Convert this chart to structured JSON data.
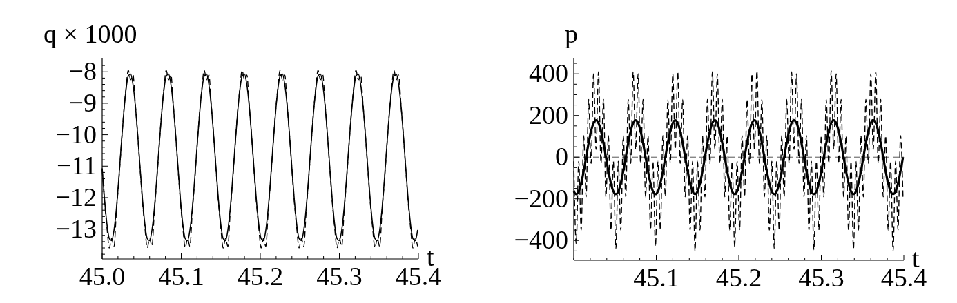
{
  "chart_data": [
    {
      "type": "line",
      "ylabel": "q × 1000",
      "xlabel": "t",
      "x": [
        45,
        45.003,
        45.006,
        45.009,
        45.012,
        45.015,
        45.018,
        45.021,
        45.024,
        45.027,
        45.03,
        45.033,
        45.036,
        45.039,
        45.042,
        45.045,
        45.048,
        45.051,
        45.054,
        45.057,
        45.06,
        45.063,
        45.066,
        45.069,
        45.072,
        45.075,
        45.078,
        45.081,
        45.084,
        45.087,
        45.09,
        45.093,
        45.096,
        45.099,
        45.102,
        45.105,
        45.108,
        45.111,
        45.114,
        45.117,
        45.12,
        45.123,
        45.126,
        45.129,
        45.132,
        45.135,
        45.138,
        45.141,
        45.144,
        45.147,
        45.15,
        45.153,
        45.156,
        45.159,
        45.162,
        45.165,
        45.168,
        45.171,
        45.174,
        45.177,
        45.18,
        45.183,
        45.186,
        45.189,
        45.192,
        45.195,
        45.198,
        45.201,
        45.204,
        45.207,
        45.21,
        45.213,
        45.216,
        45.219,
        45.222,
        45.225,
        45.228,
        45.231,
        45.234,
        45.237,
        45.24,
        45.243,
        45.246,
        45.249,
        45.252,
        45.255,
        45.258,
        45.261,
        45.264,
        45.267,
        45.27,
        45.273,
        45.276,
        45.279,
        45.282,
        45.285,
        45.288,
        45.291,
        45.294,
        45.297,
        45.3,
        45.303,
        45.306,
        45.309,
        45.312,
        45.315,
        45.318,
        45.321,
        45.324,
        45.327,
        45.33,
        45.333,
        45.336,
        45.339,
        45.342,
        45.345,
        45.348,
        45.351,
        45.354,
        45.357,
        45.36,
        45.363,
        45.366,
        45.369,
        45.372,
        45.375,
        45.378,
        45.381,
        45.384,
        45.387,
        45.39,
        45.393,
        45.396,
        45.399
      ],
      "series": [
        {
          "color": "#000000",
          "line_style": "solid",
          "values": [
            -11.07,
            -12.06,
            -12.84,
            -13.3,
            -13.37,
            -13.03,
            -12.35,
            -11.41,
            -10.37,
            -9.39,
            -8.6,
            -8.14,
            -8.07,
            -8.41,
            -9.09,
            -10.03,
            -11.07,
            -12.06,
            -12.84,
            -13.3,
            -13.37,
            -13.03,
            -12.35,
            -11.41,
            -10.37,
            -9.39,
            -8.6,
            -8.14,
            -8.07,
            -8.41,
            -9.09,
            -10.03,
            -11.07,
            -12.06,
            -12.84,
            -13.3,
            -13.37,
            -13.03,
            -12.35,
            -11.41,
            -10.37,
            -9.39,
            -8.6,
            -8.14,
            -8.07,
            -8.41,
            -9.09,
            -10.03,
            -11.07,
            -12.06,
            -12.84,
            -13.3,
            -13.37,
            -13.03,
            -12.35,
            -11.41,
            -10.37,
            -9.39,
            -8.6,
            -8.14,
            -8.07,
            -8.41,
            -9.09,
            -10.03,
            -11.07,
            -12.06,
            -12.84,
            -13.3,
            -13.37,
            -13.03,
            -12.35,
            -11.41,
            -10.37,
            -9.39,
            -8.6,
            -8.14,
            -8.07,
            -8.41,
            -9.09,
            -10.03,
            -11.07,
            -12.06,
            -12.84,
            -13.3,
            -13.37,
            -13.03,
            -12.35,
            -11.41,
            -10.37,
            -9.39,
            -8.6,
            -8.14,
            -8.07,
            -8.41,
            -9.09,
            -10.03,
            -11.07,
            -12.06,
            -12.84,
            -13.3,
            -13.37,
            -13.03,
            -12.35,
            -11.41,
            -10.37,
            -9.39,
            -8.6,
            -8.14,
            -8.07,
            -8.41,
            -9.09,
            -10.03,
            -11.07,
            -12.06,
            -12.84,
            -13.3,
            -13.37,
            -13.03,
            -12.35,
            -11.41,
            -10.37,
            -9.39,
            -8.6,
            -8.14,
            -8.07,
            -8.41,
            -9.09,
            -10.03,
            -11.07,
            -12.06,
            -12.84,
            -13.3,
            -13.37,
            -13.03
          ]
        },
        {
          "color": "#000000",
          "line_style": "dashed",
          "values": [
            -11.11,
            -12.14,
            -12.95,
            -13.6,
            -13.3,
            -13.55,
            -12.44,
            -11.47,
            -10.39,
            -9.36,
            -8.55,
            -7.95,
            -8.25,
            -8.1,
            -9.06,
            -10.03,
            -11.11,
            -12.14,
            -12.95,
            -13.6,
            -13.3,
            -13.55,
            -12.44,
            -11.47,
            -10.39,
            -9.36,
            -8.55,
            -7.95,
            -8.25,
            -8.1,
            -9.06,
            -10.03,
            -11.11,
            -12.14,
            -12.95,
            -13.6,
            -13.3,
            -13.55,
            -12.44,
            -11.47,
            -10.39,
            -9.36,
            -8.55,
            -7.95,
            -8.25,
            -8.1,
            -9.06,
            -10.03,
            -11.11,
            -12.14,
            -12.95,
            -13.6,
            -13.3,
            -13.55,
            -12.44,
            -11.47,
            -10.39,
            -9.36,
            -8.55,
            -7.95,
            -8.25,
            -8.1,
            -9.06,
            -10.03,
            -11.11,
            -12.14,
            -12.95,
            -13.6,
            -13.3,
            -13.55,
            -12.44,
            -11.47,
            -10.39,
            -9.36,
            -8.55,
            -7.95,
            -8.25,
            -8.1,
            -9.06,
            -10.03,
            -11.11,
            -12.14,
            -12.95,
            -13.6,
            -13.3,
            -13.55,
            -12.44,
            -11.47,
            -10.39,
            -9.36,
            -8.55,
            -7.95,
            -8.25,
            -8.1,
            -9.06,
            -10.03,
            -11.11,
            -12.14,
            -12.95,
            -13.6,
            -13.3,
            -13.55,
            -12.44,
            -11.47,
            -10.39,
            -9.36,
            -8.55,
            -7.95,
            -8.25,
            -8.1,
            -9.06,
            -10.03,
            -11.11,
            -12.14,
            -12.95,
            -13.6,
            -13.3,
            -13.55,
            -12.44,
            -11.47,
            -10.39,
            -9.36,
            -8.55,
            -7.95,
            -8.25,
            -8.1,
            -9.06,
            -10.03,
            -11.11,
            -12.14,
            -12.95,
            -13.6,
            -13.3,
            -13.55
          ]
        }
      ],
      "xlim": [
        45,
        45.4
      ],
      "ylim": [
        -13.95,
        -7.6
      ],
      "xticks": [
        {
          "value": 45,
          "label": "45.0"
        },
        {
          "value": 45.02,
          "label": null
        },
        {
          "value": 45.04,
          "label": null
        },
        {
          "value": 45.06,
          "label": null
        },
        {
          "value": 45.08,
          "label": null
        },
        45.1,
        {
          "value": 45.12,
          "label": null
        },
        {
          "value": 45.14,
          "label": null
        },
        {
          "value": 45.16,
          "label": null
        },
        {
          "value": 45.18,
          "label": null
        },
        45.2,
        {
          "value": 45.22,
          "label": null
        },
        {
          "value": 45.24,
          "label": null
        },
        {
          "value": 45.26,
          "label": null
        },
        {
          "value": 45.28,
          "label": null
        },
        45.3,
        {
          "value": 45.32,
          "label": null
        },
        {
          "value": 45.34,
          "label": null
        },
        {
          "value": 45.36,
          "label": null
        },
        {
          "value": 45.38,
          "label": null
        },
        45.4
      ],
      "yticks": [
        {
          "value": -7.8,
          "label": null
        },
        {
          "value": -8,
          "label": "−8"
        },
        {
          "value": -8.2,
          "label": null
        },
        {
          "value": -8.4,
          "label": null
        },
        {
          "value": -8.6,
          "label": null
        },
        {
          "value": -8.8,
          "label": null
        },
        {
          "value": -9,
          "label": "−9"
        },
        {
          "value": -9.2,
          "label": null
        },
        {
          "value": -9.4,
          "label": null
        },
        {
          "value": -9.6,
          "label": null
        },
        {
          "value": -9.8,
          "label": null
        },
        {
          "value": -10,
          "label": "−10"
        },
        {
          "value": -10.2,
          "label": null
        },
        {
          "value": -10.4,
          "label": null
        },
        {
          "value": -10.6,
          "label": null
        },
        {
          "value": -10.8,
          "label": null
        },
        {
          "value": -11,
          "label": "−11"
        },
        {
          "value": -11.2,
          "label": null
        },
        {
          "value": -11.4,
          "label": null
        },
        {
          "value": -11.6,
          "label": null
        },
        {
          "value": -11.8,
          "label": null
        },
        {
          "value": -12,
          "label": "−12"
        },
        {
          "value": -12.2,
          "label": null
        },
        {
          "value": -12.4,
          "label": null
        },
        {
          "value": -12.6,
          "label": null
        },
        {
          "value": -12.8,
          "label": null
        },
        {
          "value": -13,
          "label": "−13"
        },
        {
          "value": -13.2,
          "label": null
        },
        {
          "value": -13.4,
          "label": null
        },
        {
          "value": -13.6,
          "label": null
        },
        {
          "value": -13.8,
          "label": null
        }
      ]
    },
    {
      "type": "line",
      "ylabel": "p",
      "xlabel": "t",
      "x": [
        45,
        45.003,
        45.006,
        45.009,
        45.012,
        45.015,
        45.018,
        45.021,
        45.024,
        45.027,
        45.03,
        45.033,
        45.036,
        45.039,
        45.042,
        45.045,
        45.048,
        45.051,
        45.054,
        45.057,
        45.06,
        45.063,
        45.066,
        45.069,
        45.072,
        45.075,
        45.078,
        45.081,
        45.084,
        45.087,
        45.09,
        45.093,
        45.096,
        45.099,
        45.102,
        45.105,
        45.108,
        45.111,
        45.114,
        45.117,
        45.12,
        45.123,
        45.126,
        45.129,
        45.132,
        45.135,
        45.138,
        45.141,
        45.144,
        45.147,
        45.15,
        45.153,
        45.156,
        45.159,
        45.162,
        45.165,
        45.168,
        45.171,
        45.174,
        45.177,
        45.18,
        45.183,
        45.186,
        45.189,
        45.192,
        45.195,
        45.198,
        45.201,
        45.204,
        45.207,
        45.21,
        45.213,
        45.216,
        45.219,
        45.222,
        45.225,
        45.228,
        45.231,
        45.234,
        45.237,
        45.24,
        45.243,
        45.246,
        45.249,
        45.252,
        45.255,
        45.258,
        45.261,
        45.264,
        45.267,
        45.27,
        45.273,
        45.276,
        45.279,
        45.282,
        45.285,
        45.288,
        45.291,
        45.294,
        45.297,
        45.3,
        45.303,
        45.306,
        45.309,
        45.312,
        45.315,
        45.318,
        45.321,
        45.324,
        45.327,
        45.33,
        45.333,
        45.336,
        45.339,
        45.342,
        45.345,
        45.348,
        45.351,
        45.354,
        45.357,
        45.36,
        45.363,
        45.366,
        45.369,
        45.372,
        45.375,
        45.378,
        45.381,
        45.384,
        45.387,
        45.39,
        45.393,
        45.396,
        45.399
      ],
      "series": [
        {
          "color": "#000000",
          "line_style": "solid",
          "values": [
            -164,
            -177,
            -164,
            -125,
            -68,
            0,
            68,
            125,
            164,
            177,
            164,
            125,
            68,
            0,
            -68,
            -125,
            -164,
            -177,
            -164,
            -125,
            -68,
            0,
            68,
            125,
            164,
            177,
            164,
            125,
            68,
            0,
            -68,
            -125,
            -164,
            -177,
            -164,
            -125,
            -68,
            0,
            68,
            125,
            164,
            177,
            164,
            125,
            68,
            0,
            -68,
            -125,
            -164,
            -177,
            -164,
            -125,
            -68,
            0,
            68,
            125,
            164,
            177,
            164,
            125,
            68,
            0,
            -68,
            -125,
            -164,
            -177,
            -164,
            -125,
            -68,
            0,
            68,
            125,
            164,
            177,
            164,
            125,
            68,
            0,
            -68,
            -125,
            -164,
            -177,
            -164,
            -125,
            -68,
            0,
            68,
            125,
            164,
            177,
            164,
            125,
            68,
            0,
            -68,
            -125,
            -164,
            -177,
            -164,
            -125,
            -68,
            0,
            68,
            125,
            164,
            177,
            164,
            125,
            68,
            0,
            -68,
            -125,
            -164,
            -177,
            -164,
            -125,
            -68,
            0,
            68,
            125,
            164,
            177,
            164,
            125,
            68,
            0,
            -68,
            -125,
            -164,
            -177,
            -164,
            -125,
            -68,
            0
          ]
        },
        {
          "color": "#000000",
          "line_style": "dashed",
          "values": [
            -20,
            -417,
            -20,
            -350,
            103,
            -190,
            277,
            -30,
            400,
            37,
            410,
            -30,
            277,
            -190,
            103,
            -350,
            -20,
            -440,
            -20,
            -350,
            103,
            -190,
            277,
            -30,
            410,
            37,
            400,
            -30,
            277,
            -190,
            103,
            -350,
            -20,
            -430,
            -20,
            -350,
            103,
            -190,
            277,
            -30,
            400,
            37,
            410,
            -30,
            277,
            -190,
            103,
            -350,
            -20,
            -450,
            -20,
            -350,
            103,
            -190,
            277,
            -30,
            410,
            37,
            400,
            -30,
            277,
            -190,
            103,
            -350,
            -20,
            -430,
            -20,
            -350,
            103,
            -190,
            277,
            -30,
            400,
            37,
            415,
            -30,
            277,
            -190,
            103,
            -350,
            -20,
            -440,
            -20,
            -350,
            103,
            -190,
            277,
            -30,
            410,
            37,
            400,
            -30,
            277,
            -190,
            103,
            -350,
            -20,
            -445,
            -20,
            -350,
            103,
            -190,
            277,
            -30,
            415,
            37,
            400,
            -30,
            277,
            -190,
            103,
            -350,
            -20,
            -440,
            -20,
            -350,
            103,
            -190,
            277,
            -30,
            400,
            37,
            410,
            -30,
            277,
            -190,
            103,
            -350,
            -20,
            -450,
            -20,
            -350,
            103,
            -190
          ]
        }
      ],
      "ref_lines": [
        {
          "axis": "y",
          "value": 0,
          "line_style": "dashed"
        }
      ],
      "xlim": [
        45,
        45.4
      ],
      "ylim": [
        -495,
        470
      ],
      "xticks": [
        {
          "value": 45,
          "label": null
        },
        {
          "value": 45.02,
          "label": null
        },
        {
          "value": 45.04,
          "label": null
        },
        {
          "value": 45.06,
          "label": null
        },
        {
          "value": 45.08,
          "label": null
        },
        45.1,
        {
          "value": 45.12,
          "label": null
        },
        {
          "value": 45.14,
          "label": null
        },
        {
          "value": 45.16,
          "label": null
        },
        {
          "value": 45.18,
          "label": null
        },
        45.2,
        {
          "value": 45.22,
          "label": null
        },
        {
          "value": 45.24,
          "label": null
        },
        {
          "value": 45.26,
          "label": null
        },
        {
          "value": 45.28,
          "label": null
        },
        45.3,
        {
          "value": 45.32,
          "label": null
        },
        {
          "value": 45.34,
          "label": null
        },
        {
          "value": 45.36,
          "label": null
        },
        {
          "value": 45.38,
          "label": null
        },
        45.4
      ],
      "yticks": [
        {
          "value": 450,
          "label": null
        },
        {
          "value": 400,
          "label": "400"
        },
        {
          "value": 350,
          "label": null
        },
        {
          "value": 300,
          "label": null
        },
        {
          "value": 250,
          "label": null
        },
        {
          "value": 200,
          "label": "200"
        },
        {
          "value": 150,
          "label": null
        },
        {
          "value": 100,
          "label": null
        },
        {
          "value": 50,
          "label": null
        },
        {
          "value": 0,
          "label": "0"
        },
        {
          "value": -50,
          "label": null
        },
        {
          "value": -100,
          "label": null
        },
        {
          "value": -150,
          "label": null
        },
        {
          "value": -200,
          "label": "−200"
        },
        {
          "value": -250,
          "label": null
        },
        {
          "value": -300,
          "label": null
        },
        {
          "value": -350,
          "label": null
        },
        {
          "value": -400,
          "label": "−400"
        },
        {
          "value": -450,
          "label": null
        }
      ]
    }
  ]
}
